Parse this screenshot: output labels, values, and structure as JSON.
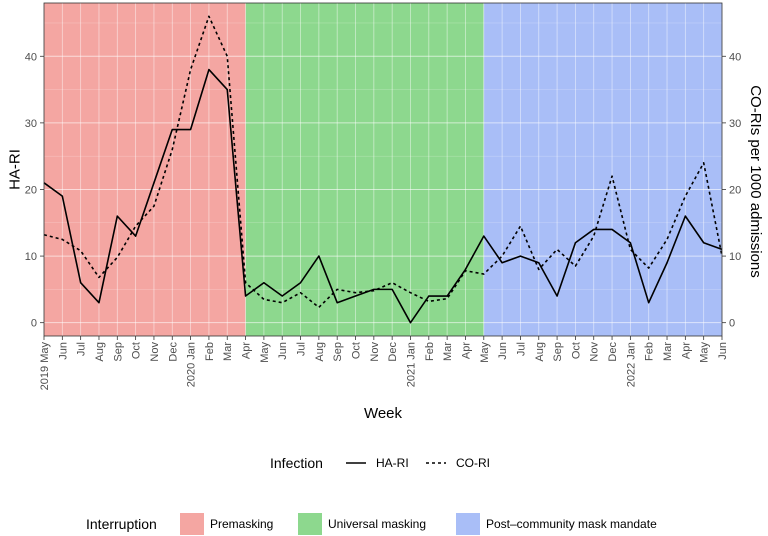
{
  "chart_data": {
    "type": "line",
    "xlabel": "Week",
    "ylabel_left": "HA-RI",
    "ylabel_right": "CO-RIs per 1000 admissions",
    "ylim": [
      -2,
      48
    ],
    "yticks": [
      0,
      10,
      20,
      30,
      40
    ],
    "x_tick_labels": [
      "2019 May",
      "Jun",
      "Jul",
      "Aug",
      "Sep",
      "Oct",
      "Nov",
      "Dec",
      "2020 Jan",
      "Feb",
      "Mar",
      "Apr",
      "May",
      "Jun",
      "Jul",
      "Aug",
      "Sep",
      "Oct",
      "Nov",
      "Dec",
      "2021 Jan",
      "Feb",
      "Mar",
      "Apr",
      "May",
      "Jun",
      "Jul",
      "Aug",
      "Sep",
      "Oct",
      "Nov",
      "Dec",
      "2022 Jan",
      "Feb",
      "Mar",
      "Apr",
      "May",
      "Jun"
    ],
    "series": [
      {
        "name": "HA-RI",
        "style": "solid",
        "points": [
          [
            0,
            21
          ],
          [
            1,
            19
          ],
          [
            2,
            6
          ],
          [
            3,
            3
          ],
          [
            4,
            16
          ],
          [
            5,
            13
          ],
          [
            6,
            21
          ],
          [
            7,
            29
          ],
          [
            8,
            29
          ],
          [
            9,
            38
          ],
          [
            10,
            35
          ],
          [
            11,
            4
          ],
          [
            12,
            6
          ],
          [
            13,
            4
          ],
          [
            14,
            6
          ],
          [
            15,
            10
          ],
          [
            16,
            3
          ],
          [
            17,
            4
          ],
          [
            18,
            5
          ],
          [
            19,
            5
          ],
          [
            20,
            0
          ],
          [
            21,
            4
          ],
          [
            22,
            4
          ],
          [
            23,
            8
          ],
          [
            24,
            13
          ],
          [
            25,
            9
          ],
          [
            26,
            10
          ],
          [
            27,
            9
          ],
          [
            28,
            4
          ],
          [
            29,
            12
          ],
          [
            30,
            14
          ],
          [
            31,
            14
          ],
          [
            32,
            12
          ],
          [
            33,
            3
          ],
          [
            34,
            9
          ],
          [
            35,
            16
          ],
          [
            36,
            12
          ],
          [
            37,
            11
          ]
        ]
      },
      {
        "name": "CO-RI",
        "style": "dotted",
        "points": [
          [
            0,
            13.2
          ],
          [
            1,
            12.5
          ],
          [
            2,
            10.8
          ],
          [
            3,
            6.8
          ],
          [
            4,
            9.8
          ],
          [
            5,
            14.5
          ],
          [
            6,
            17.5
          ],
          [
            7,
            26
          ],
          [
            8,
            38
          ],
          [
            9,
            46
          ],
          [
            10,
            40
          ],
          [
            11,
            6
          ],
          [
            12,
            3.5
          ],
          [
            13,
            3
          ],
          [
            14,
            4.5
          ],
          [
            15,
            2.3
          ],
          [
            16,
            5
          ],
          [
            17,
            4.5
          ],
          [
            18,
            4.8
          ],
          [
            19,
            6
          ],
          [
            20,
            4.5
          ],
          [
            21,
            3.2
          ],
          [
            22,
            3.6
          ],
          [
            23,
            7.8
          ],
          [
            24,
            7.3
          ],
          [
            25,
            10
          ],
          [
            26,
            14.5
          ],
          [
            27,
            8
          ],
          [
            28,
            11
          ],
          [
            29,
            8.5
          ],
          [
            30,
            13
          ],
          [
            31,
            22
          ],
          [
            32,
            11
          ],
          [
            33,
            8.2
          ],
          [
            34,
            12.5
          ],
          [
            35,
            19
          ],
          [
            36,
            24
          ],
          [
            37,
            10
          ]
        ]
      }
    ],
    "legend_infection": {
      "title": "Infection",
      "items": [
        "HA-RI",
        "CO-RI"
      ]
    },
    "interruption": {
      "title": "Interruption",
      "periods": [
        {
          "label": "Premasking",
          "start": 0,
          "end": 11,
          "color": "#f4a6a2"
        },
        {
          "label": "Universal masking",
          "start": 11,
          "end": 24,
          "color": "#8dd88e"
        },
        {
          "label": "Post–community mask mandate",
          "start": 24,
          "end": 37,
          "color": "#a9bef7"
        }
      ]
    },
    "grid": true,
    "legend_position": "bottom"
  }
}
